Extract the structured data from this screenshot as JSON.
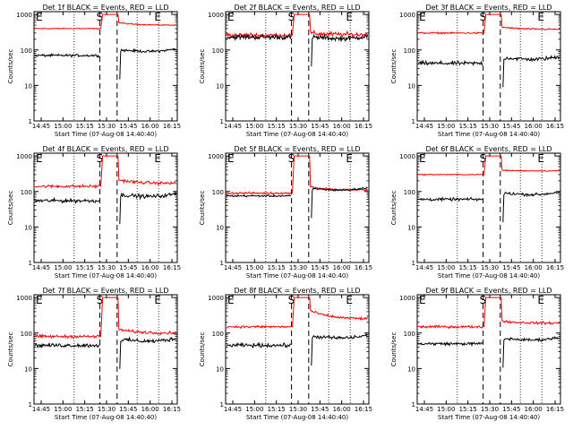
{
  "chart_data": [
    {
      "title": "Det 1f BLACK = Events, RED = LLD",
      "type": "line",
      "black": {
        "pre": 70,
        "post": 100,
        "noise": 0.05
      },
      "red": {
        "pre": 400,
        "peak": 1000,
        "post": 600,
        "settle": 500,
        "noise": 0.02
      },
      "markers": {
        "s1": 0.46,
        "s2": 0.58,
        "e_left": "E",
        "s_label": "S",
        "e_right": "E"
      }
    },
    {
      "title": "Det 2f BLACK = Events, RED = LLD",
      "type": "line",
      "black": {
        "pre": 230,
        "post": 230,
        "noise": 0.1
      },
      "red": {
        "pre": 260,
        "peak": 1000,
        "post": 300,
        "settle": 270,
        "noise": 0.1
      },
      "markers": {
        "s1": 0.46,
        "s2": 0.58,
        "e_left": "E",
        "s_label": "S",
        "e_right": "E"
      }
    },
    {
      "title": "Det 3f BLACK = Events, RED = LLD",
      "type": "line",
      "black": {
        "pre": 42,
        "post": 60,
        "noise": 0.08
      },
      "red": {
        "pre": 300,
        "peak": 1000,
        "post": 450,
        "settle": 380,
        "noise": 0.03
      },
      "markers": {
        "s1": 0.46,
        "s2": 0.58,
        "e_left": "E",
        "s_label": "S",
        "e_right": "E"
      }
    },
    {
      "title": "Det 4f BLACK = Events, RED = LLD",
      "type": "line",
      "black": {
        "pre": 55,
        "post": 80,
        "noise": 0.08
      },
      "red": {
        "pre": 140,
        "peak": 1000,
        "post": 220,
        "settle": 170,
        "noise": 0.06
      },
      "markers": {
        "s1": 0.46,
        "s2": 0.58,
        "e_left": "E",
        "s_label": "S",
        "e_right": "E"
      }
    },
    {
      "title": "Det 5f BLACK = Events, RED = LLD",
      "type": "line",
      "black": {
        "pre": 75,
        "post": 120,
        "noise": 0.04
      },
      "red": {
        "pre": 90,
        "peak": 1000,
        "post": 140,
        "settle": 110,
        "noise": 0.04
      },
      "markers": {
        "s1": 0.46,
        "s2": 0.58,
        "e_left": "E",
        "s_label": "S",
        "e_right": "E"
      }
    },
    {
      "title": "Det 6f BLACK = Events, RED = LLD",
      "type": "line",
      "black": {
        "pre": 60,
        "post": 90,
        "noise": 0.06
      },
      "red": {
        "pre": 300,
        "peak": 1000,
        "post": 400,
        "settle": 380,
        "noise": 0.02
      },
      "markers": {
        "s1": 0.46,
        "s2": 0.58,
        "e_left": "E",
        "s_label": "S",
        "e_right": "E"
      }
    },
    {
      "title": "Det 7f BLACK = Events, RED = LLD",
      "type": "line",
      "black": {
        "pre": 45,
        "post": 65,
        "noise": 0.08
      },
      "red": {
        "pre": 80,
        "peak": 1000,
        "post": 130,
        "settle": 100,
        "noise": 0.06
      },
      "markers": {
        "s1": 0.46,
        "s2": 0.58,
        "e_left": "E",
        "s_label": "S",
        "e_right": "E"
      }
    },
    {
      "title": "Det 8f BLACK = Events, RED = LLD",
      "type": "line",
      "black": {
        "pre": 45,
        "post": 80,
        "noise": 0.08
      },
      "red": {
        "pre": 150,
        "peak": 1000,
        "post": 450,
        "settle": 250,
        "noise": 0.05
      },
      "markers": {
        "s1": 0.46,
        "s2": 0.58,
        "e_left": "E",
        "s_label": "S",
        "e_right": "E"
      }
    },
    {
      "title": "Det 9f BLACK = Events, RED = LLD",
      "type": "line",
      "black": {
        "pre": 50,
        "post": 70,
        "noise": 0.06
      },
      "red": {
        "pre": 150,
        "peak": 1000,
        "post": 220,
        "settle": 190,
        "noise": 0.05
      },
      "markers": {
        "s1": 0.46,
        "s2": 0.58,
        "e_left": "E",
        "s_label": "S",
        "e_right": "E"
      }
    }
  ],
  "shared": {
    "xlabel": "Start Time (07-Aug-08 14:40:40)",
    "ylabel": "Counts/sec",
    "xticks": [
      "14:45",
      "15:00",
      "15:15",
      "15:30",
      "15:45",
      "16:00",
      "16:15"
    ],
    "xlim": [
      "14:40:40",
      "16:20"
    ],
    "yticks": [
      "1",
      "10",
      "100",
      "1000"
    ],
    "ylim": [
      1,
      1200
    ],
    "yscale": "log",
    "grid": false,
    "colors": {
      "events": "#000000",
      "lld": "#ff0000",
      "axes": "#000000"
    }
  }
}
